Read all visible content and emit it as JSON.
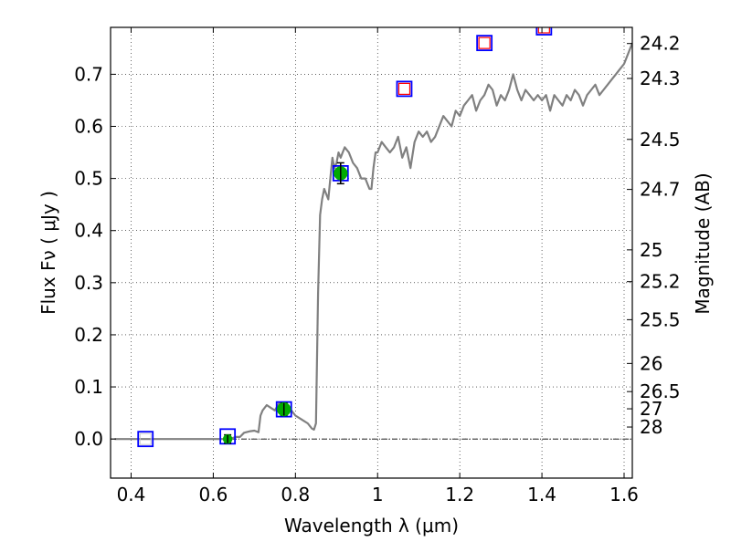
{
  "chart_data": {
    "type": "scatter",
    "xlabel": "Wavelength  λ (μm)",
    "ylabel": "Flux  Fν ( μJy )",
    "y2label": "Magnitude (AB)",
    "xlim": [
      0.35,
      1.62
    ],
    "ylim": [
      -0.075,
      0.79
    ],
    "grid": true,
    "x_ticks": [
      {
        "v": 0.4,
        "label": "0.4"
      },
      {
        "v": 0.6,
        "label": "0.6"
      },
      {
        "v": 0.8,
        "label": "0.8"
      },
      {
        "v": 1.0,
        "label": "1"
      },
      {
        "v": 1.2,
        "label": "1.2"
      },
      {
        "v": 1.4,
        "label": "1.4"
      },
      {
        "v": 1.6,
        "label": "1.6"
      }
    ],
    "y_ticks": [
      {
        "v": 0.0,
        "label": "0.0"
      },
      {
        "v": 0.1,
        "label": "0.1"
      },
      {
        "v": 0.2,
        "label": "0.2"
      },
      {
        "v": 0.3,
        "label": "0.3"
      },
      {
        "v": 0.4,
        "label": "0.4"
      },
      {
        "v": 0.5,
        "label": "0.5"
      },
      {
        "v": 0.6,
        "label": "0.6"
      },
      {
        "v": 0.7,
        "label": "0.7"
      }
    ],
    "magnitude_ticks": [
      {
        "flux": 0.759,
        "label": "24.2"
      },
      {
        "flux": 0.692,
        "label": "24.3"
      },
      {
        "flux": 0.575,
        "label": "24.5"
      },
      {
        "flux": 0.479,
        "label": "24.7"
      },
      {
        "flux": 0.363,
        "label": "25"
      },
      {
        "flux": 0.302,
        "label": "25.2"
      },
      {
        "flux": 0.229,
        "label": "25.5"
      },
      {
        "flux": 0.145,
        "label": "26"
      },
      {
        "flux": 0.091,
        "label": "26.5"
      },
      {
        "flux": 0.058,
        "label": "27"
      },
      {
        "flux": 0.023,
        "label": "28"
      }
    ],
    "zero_line": 0.0,
    "colors": {
      "spectrum": "#808080",
      "observed": "#00aa00",
      "model_box": "#0000ff",
      "inner_box": "#ff0000",
      "errorbar": "#000000"
    },
    "series": [
      {
        "kind": "spectrum",
        "x": [
          0.36,
          0.5,
          0.64,
          0.655,
          0.665,
          0.675,
          0.69,
          0.7,
          0.71,
          0.715,
          0.72,
          0.73,
          0.74,
          0.75,
          0.76,
          0.77,
          0.78,
          0.79,
          0.8,
          0.81,
          0.82,
          0.83,
          0.84,
          0.845,
          0.85,
          0.855,
          0.86,
          0.865,
          0.87,
          0.88,
          0.885,
          0.89,
          0.895,
          0.9,
          0.905,
          0.91,
          0.915,
          0.92,
          0.93,
          0.94,
          0.95,
          0.96,
          0.97,
          0.98,
          0.985,
          0.99,
          0.995,
          1.0,
          1.01,
          1.02,
          1.03,
          1.04,
          1.05,
          1.06,
          1.07,
          1.08,
          1.09,
          1.1,
          1.11,
          1.12,
          1.13,
          1.14,
          1.15,
          1.16,
          1.17,
          1.18,
          1.19,
          1.2,
          1.21,
          1.22,
          1.23,
          1.24,
          1.25,
          1.26,
          1.27,
          1.28,
          1.29,
          1.3,
          1.31,
          1.32,
          1.33,
          1.34,
          1.35,
          1.36,
          1.37,
          1.38,
          1.39,
          1.4,
          1.41,
          1.42,
          1.43,
          1.44,
          1.45,
          1.46,
          1.47,
          1.48,
          1.49,
          1.5,
          1.51,
          1.52,
          1.53,
          1.54,
          1.55,
          1.56,
          1.57,
          1.58,
          1.59,
          1.6,
          1.61,
          1.62
        ],
        "y": [
          0.0,
          0.0,
          0.0,
          0.004,
          0.004,
          0.012,
          0.015,
          0.016,
          0.013,
          0.045,
          0.055,
          0.065,
          0.06,
          0.055,
          0.068,
          0.064,
          0.058,
          0.055,
          0.045,
          0.04,
          0.035,
          0.03,
          0.02,
          0.018,
          0.03,
          0.28,
          0.43,
          0.46,
          0.48,
          0.46,
          0.5,
          0.54,
          0.52,
          0.53,
          0.55,
          0.54,
          0.55,
          0.56,
          0.55,
          0.53,
          0.52,
          0.5,
          0.5,
          0.48,
          0.48,
          0.52,
          0.55,
          0.55,
          0.57,
          0.56,
          0.55,
          0.56,
          0.58,
          0.54,
          0.56,
          0.52,
          0.57,
          0.59,
          0.58,
          0.59,
          0.57,
          0.58,
          0.6,
          0.62,
          0.61,
          0.6,
          0.63,
          0.62,
          0.64,
          0.65,
          0.66,
          0.63,
          0.65,
          0.66,
          0.68,
          0.67,
          0.64,
          0.66,
          0.65,
          0.67,
          0.7,
          0.67,
          0.65,
          0.67,
          0.66,
          0.65,
          0.66,
          0.65,
          0.66,
          0.63,
          0.66,
          0.65,
          0.64,
          0.66,
          0.65,
          0.67,
          0.66,
          0.64,
          0.66,
          0.67,
          0.68,
          0.66,
          0.67,
          0.68,
          0.69,
          0.7,
          0.71,
          0.72,
          0.74,
          0.76
        ]
      },
      {
        "kind": "model_boxes",
        "x": [
          0.435,
          0.635,
          0.772,
          0.91,
          1.065,
          1.26,
          1.405
        ],
        "y": [
          0.0,
          0.005,
          0.057,
          0.51,
          0.672,
          0.76,
          0.79
        ]
      },
      {
        "kind": "inner_boxes",
        "x": [
          1.065,
          1.26,
          1.405
        ],
        "y": [
          0.672,
          0.76,
          0.79
        ]
      },
      {
        "kind": "observed",
        "x": [
          0.435,
          0.635,
          0.772,
          0.91
        ],
        "y": [
          0.0,
          0.0,
          0.057,
          0.51
        ],
        "err": [
          0.0,
          0.008,
          0.012,
          0.02
        ]
      }
    ]
  }
}
